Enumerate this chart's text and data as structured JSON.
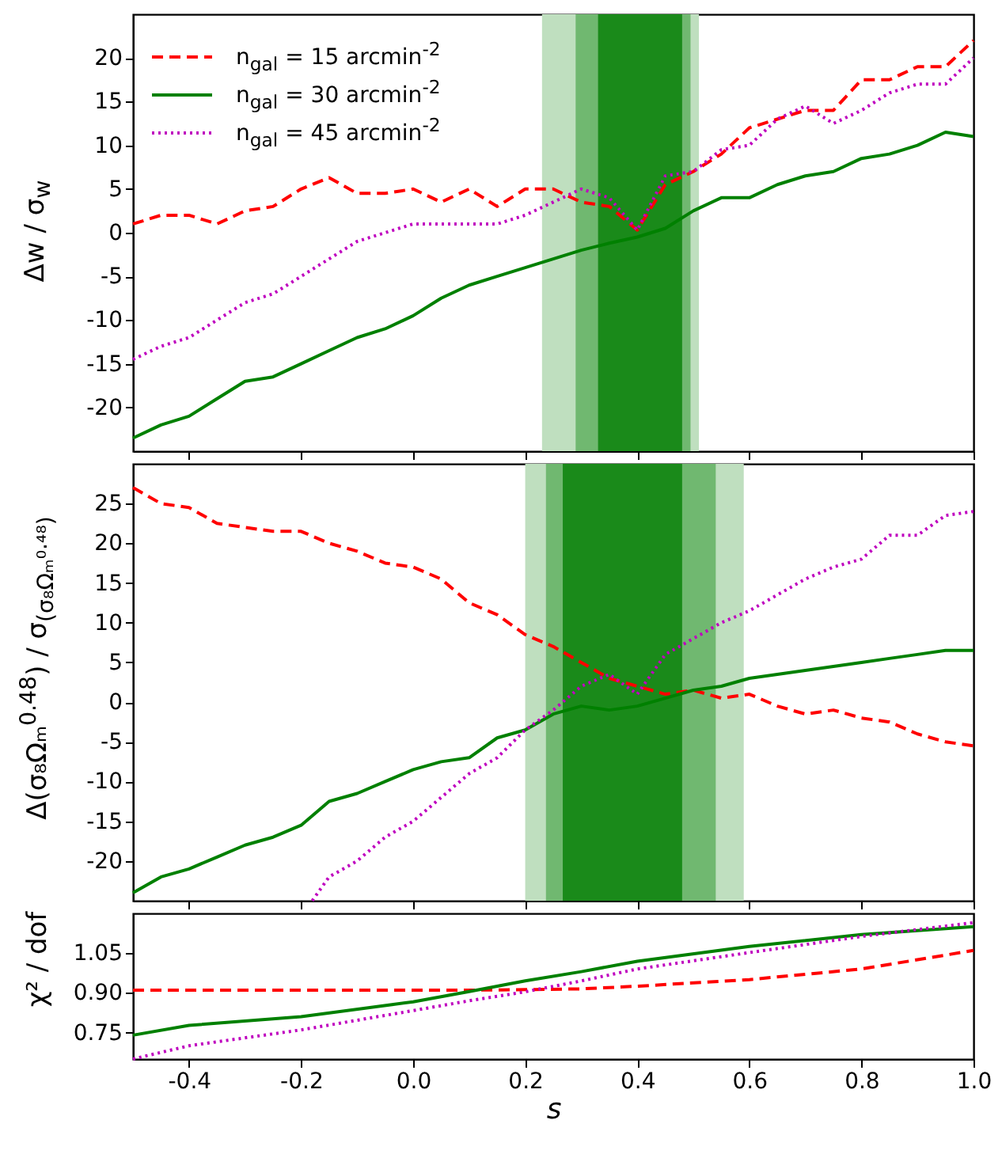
{
  "chart_data": [
    {
      "type": "line",
      "ylabel": "Δw / σ$_{w}$",
      "legend": "top left",
      "tick_labels": "y",
      "x": [
        -0.5,
        -0.45,
        -0.4,
        -0.35,
        -0.3,
        -0.25,
        -0.2,
        -0.15,
        -0.1,
        -0.05,
        0,
        0.05,
        0.1,
        0.15,
        0.2,
        0.25,
        0.3,
        0.35,
        0.4,
        0.45,
        0.5,
        0.55,
        0.6,
        0.65,
        0.7,
        0.75,
        0.8,
        0.85,
        0.9,
        0.95,
        1.0
      ],
      "series": [
        {
          "name": "n$_{gal}$ = 15 arcmin$^{-2}$",
          "color": "#ff0000",
          "line_style": "dashed",
          "values": [
            1,
            2,
            2,
            1,
            2.5,
            3,
            5,
            6.3,
            4.5,
            4.5,
            5,
            3.5,
            5,
            3,
            5,
            5,
            3.5,
            3,
            0.3,
            5.5,
            7,
            9,
            12,
            13,
            14,
            14,
            17.5,
            17.5,
            19,
            19,
            22
          ]
        },
        {
          "name": "n$_{gal}$ = 30 arcmin$^{-2}$",
          "color": "#008000",
          "line_style": "solid",
          "values": [
            -23.5,
            -22,
            -21,
            -19,
            -17,
            -16.5,
            -15,
            -13.5,
            -12,
            -11,
            -9.5,
            -7.5,
            -6,
            -5,
            -4,
            -3,
            -2,
            -1.2,
            -0.5,
            0.5,
            2.5,
            4,
            4,
            5.5,
            6.5,
            7,
            8.5,
            9,
            10,
            11.5,
            11
          ]
        },
        {
          "name": "n$_{gal}$ = 45 arcmin$^{-2}$",
          "color": "#bf00bf",
          "line_style": "dotted",
          "values": [
            -14.5,
            -13,
            -12,
            -10,
            -8,
            -7,
            -5,
            -3,
            -1,
            0,
            1,
            1,
            1,
            1,
            2,
            3.5,
            5,
            4,
            0.3,
            6.5,
            7,
            9.5,
            10,
            13,
            14.5,
            12.5,
            14,
            16,
            17,
            17,
            20
          ]
        }
      ],
      "xlim": [
        -0.5,
        1.0
      ],
      "xticks": [
        {
          "value": -0.4,
          "label": null
        },
        {
          "value": -0.2,
          "label": null
        },
        {
          "value": 0,
          "label": null
        },
        {
          "value": 0.2,
          "label": null
        },
        {
          "value": 0.4,
          "label": null
        },
        {
          "value": 0.6,
          "label": null
        },
        {
          "value": 0.8,
          "label": null
        },
        {
          "value": 1,
          "label": null
        }
      ],
      "ylim": [
        -25,
        25
      ],
      "yticks": [
        -20,
        -15,
        -10,
        -5,
        0,
        5,
        10,
        15,
        20
      ],
      "bands": [
        {
          "axis": "x",
          "from": 0.23,
          "to": 0.51,
          "color": "#bfdfbf"
        },
        {
          "axis": "x",
          "from": 0.29,
          "to": 0.495,
          "color": "#70b870"
        },
        {
          "axis": "x",
          "from": 0.33,
          "to": 0.48,
          "color": "#1a8a1a"
        }
      ]
    },
    {
      "type": "line",
      "ylabel": "Δ(σ₈Ωₘ$^{0.48}$) / σ$_{(σ₈Ωₘ⁰·⁴⁸)}$",
      "tick_labels": "y",
      "x": [
        -0.5,
        -0.45,
        -0.4,
        -0.35,
        -0.3,
        -0.25,
        -0.2,
        -0.15,
        -0.1,
        -0.05,
        0,
        0.05,
        0.1,
        0.15,
        0.2,
        0.25,
        0.3,
        0.35,
        0.4,
        0.45,
        0.5,
        0.55,
        0.6,
        0.65,
        0.7,
        0.75,
        0.8,
        0.85,
        0.9,
        0.95,
        1.0
      ],
      "series": [
        {
          "color": "#ff0000",
          "line_style": "dashed",
          "values": [
            27,
            25,
            24.5,
            22.5,
            22,
            21.5,
            21.5,
            20,
            19,
            17.5,
            17,
            15.5,
            12.5,
            11,
            8.5,
            7,
            5,
            3,
            2,
            1,
            1.5,
            0.5,
            1,
            -0.5,
            -1.5,
            -1,
            -2,
            -2.5,
            -4,
            -5,
            -5.5
          ]
        },
        {
          "color": "#008000",
          "line_style": "solid",
          "values": [
            -24,
            -22,
            -21,
            -19.5,
            -18,
            -17,
            -15.5,
            -12.5,
            -11.5,
            -10,
            -8.5,
            -7.5,
            -7,
            -4.5,
            -3.5,
            -1.5,
            -0.5,
            -1,
            -0.5,
            0.5,
            1.5,
            2,
            3,
            3.5,
            4,
            4.5,
            5,
            5.5,
            6,
            6.5,
            6.5
          ]
        },
        {
          "color": "#bf00bf",
          "line_style": "dotted",
          "x": [
            -0.18,
            -0.15,
            -0.1,
            -0.05,
            0,
            0.05,
            0.1,
            0.15,
            0.2,
            0.25,
            0.3,
            0.35,
            0.4,
            0.45,
            0.5,
            0.55,
            0.6,
            0.65,
            0.7,
            0.75,
            0.8,
            0.85,
            0.9,
            0.95,
            1.0
          ],
          "values": [
            -25,
            -22,
            -20,
            -17,
            -15,
            -12,
            -9,
            -7,
            -3.5,
            -1,
            2,
            3.5,
            1,
            6,
            8,
            10,
            11.5,
            13.5,
            15.5,
            17,
            18,
            21,
            21,
            23.5,
            24
          ]
        }
      ],
      "xlim": [
        -0.5,
        1.0
      ],
      "xticks": [
        {
          "value": -0.4,
          "label": null
        },
        {
          "value": -0.2,
          "label": null
        },
        {
          "value": 0,
          "label": null
        },
        {
          "value": 0.2,
          "label": null
        },
        {
          "value": 0.4,
          "label": null
        },
        {
          "value": 0.6,
          "label": null
        },
        {
          "value": 0.8,
          "label": null
        },
        {
          "value": 1,
          "label": null
        }
      ],
      "ylim": [
        -25,
        30
      ],
      "yticks": [
        -20,
        -15,
        -10,
        -5,
        0,
        5,
        10,
        15,
        20,
        25
      ],
      "bands": [
        {
          "axis": "x",
          "from": 0.2,
          "to": 0.59,
          "color": "#bfdfbf"
        },
        {
          "axis": "x",
          "from": 0.237,
          "to": 0.54,
          "color": "#70b870"
        },
        {
          "axis": "x",
          "from": 0.267,
          "to": 0.48,
          "color": "#1a8a1a"
        }
      ]
    },
    {
      "type": "line",
      "ylabel": "χ² / dof",
      "xlabel": "s",
      "x": [
        -0.5,
        -0.4,
        -0.2,
        0,
        0.1,
        0.2,
        0.3,
        0.4,
        0.6,
        0.8,
        1.0
      ],
      "series": [
        {
          "color": "#ff0000",
          "line_style": "dashed",
          "values": [
            0.91,
            0.91,
            0.91,
            0.91,
            0.91,
            0.912,
            0.915,
            0.925,
            0.95,
            0.99,
            1.06
          ]
        },
        {
          "color": "#008000",
          "line_style": "solid",
          "values": [
            0.74,
            0.777,
            0.81,
            0.866,
            0.905,
            0.945,
            0.98,
            1.019,
            1.075,
            1.12,
            1.15
          ]
        },
        {
          "color": "#bf00bf",
          "line_style": "dotted",
          "values": [
            0.65,
            0.7,
            0.76,
            0.833,
            0.87,
            0.904,
            0.945,
            0.99,
            1.052,
            1.113,
            1.165
          ]
        }
      ],
      "xlim": [
        -0.5,
        1.0
      ],
      "xticks": [
        -0.4,
        -0.2,
        {
          "value": 0,
          "label": "0.0"
        },
        0.2,
        0.4,
        0.6,
        0.8,
        {
          "value": 1,
          "label": "1.0"
        }
      ],
      "ylim": [
        0.65,
        1.2
      ],
      "yticks": [
        0.75,
        {
          "value": 0.9,
          "label": "0.90"
        },
        1.05
      ]
    }
  ]
}
